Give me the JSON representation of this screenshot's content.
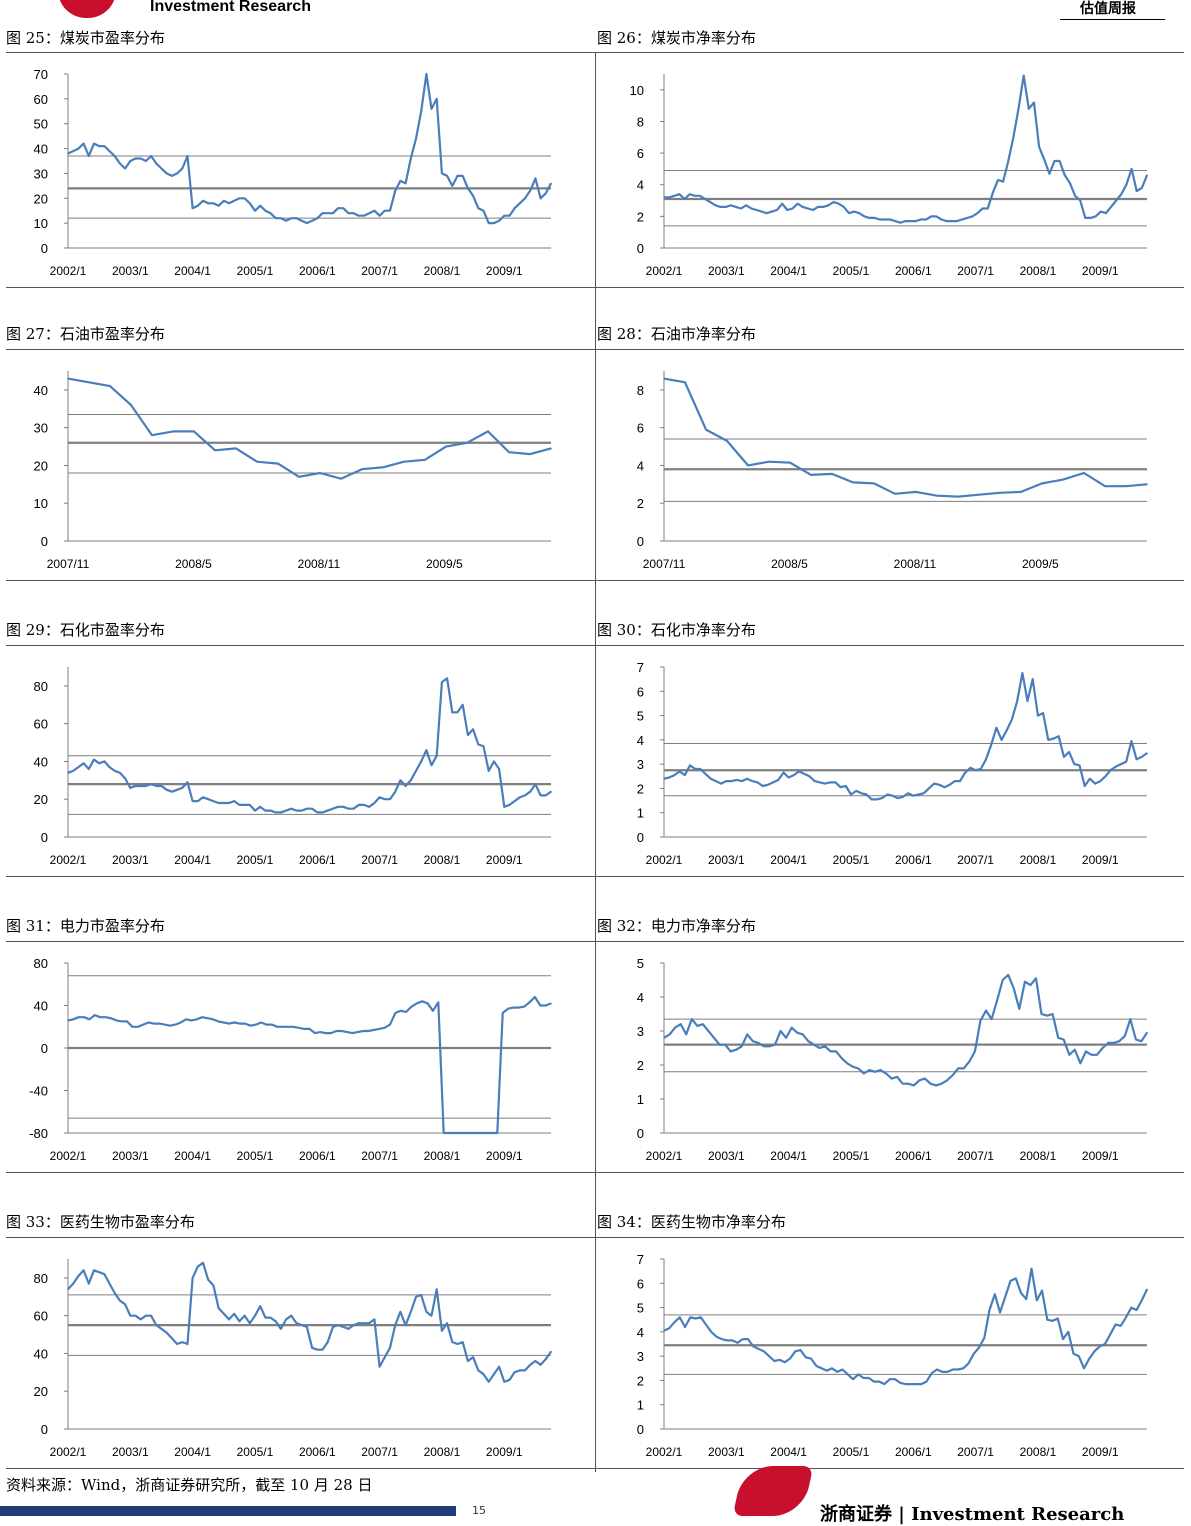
{
  "header": {
    "brand": "Investment Research",
    "right": "估值周报"
  },
  "source": "资料来源：Wind，浙商证券研究所，截至 10 月 28 日",
  "footer": {
    "page": "15",
    "brand_text": "浙商证券  |  Investment  Research"
  },
  "colors": {
    "line": "#4a7ebb",
    "ref": "#7f7f7f",
    "negative_tick": "#c00000",
    "footer_bar": "#1f3e7a",
    "logo": "#c8102e"
  },
  "chart_data": [
    {
      "id": "f25",
      "type": "line",
      "title": "图 25：煤炭市盈率分布",
      "ylim": [
        0,
        70
      ],
      "yticks": [
        0,
        10,
        20,
        30,
        40,
        50,
        60,
        70
      ],
      "xticks": [
        "2002/1",
        "2003/1",
        "2004/1",
        "2005/1",
        "2006/1",
        "2007/1",
        "2008/1",
        "2009/1"
      ],
      "ref": {
        "mean": 24,
        "upper": 37,
        "lower": 12
      },
      "values": [
        38,
        39,
        40,
        42,
        37,
        42,
        41,
        41,
        39,
        37,
        34,
        32,
        35,
        36,
        36,
        35,
        37,
        34,
        32,
        30,
        29,
        30,
        32,
        37,
        16,
        17,
        19,
        18,
        18,
        17,
        19,
        18,
        19,
        20,
        20,
        18,
        15,
        17,
        15,
        14,
        12,
        12,
        11,
        12,
        12,
        11,
        10,
        11,
        12,
        14,
        14,
        14,
        16,
        16,
        14,
        14,
        13,
        13,
        14,
        15,
        13,
        15,
        15,
        23,
        27,
        26,
        36,
        44,
        55,
        70,
        56,
        60,
        30,
        29,
        25,
        29,
        29,
        24,
        21,
        16,
        15,
        10,
        10,
        11,
        13,
        13,
        16,
        18,
        20,
        23,
        28,
        20,
        22,
        26
      ]
    },
    {
      "id": "f26",
      "type": "line",
      "title": "图 26：煤炭市净率分布",
      "ylim": [
        0,
        11
      ],
      "yticks": [
        0,
        2,
        4,
        6,
        8,
        10
      ],
      "xticks": [
        "2002/1",
        "2003/1",
        "2004/1",
        "2005/1",
        "2006/1",
        "2007/1",
        "2008/1",
        "2009/1"
      ],
      "ref": {
        "mean": 3.1,
        "upper": 4.9,
        "lower": 1.4
      },
      "values": [
        3.2,
        3.2,
        3.3,
        3.4,
        3.1,
        3.4,
        3.3,
        3.3,
        3.1,
        2.9,
        2.7,
        2.6,
        2.6,
        2.7,
        2.6,
        2.5,
        2.7,
        2.5,
        2.4,
        2.3,
        2.2,
        2.3,
        2.4,
        2.8,
        2.4,
        2.5,
        2.8,
        2.6,
        2.5,
        2.4,
        2.6,
        2.6,
        2.7,
        2.9,
        2.8,
        2.6,
        2.2,
        2.3,
        2.2,
        2.0,
        1.9,
        1.9,
        1.8,
        1.8,
        1.8,
        1.7,
        1.6,
        1.7,
        1.7,
        1.7,
        1.8,
        1.8,
        2.0,
        2.0,
        1.8,
        1.7,
        1.7,
        1.7,
        1.8,
        1.9,
        2.0,
        2.2,
        2.5,
        2.5,
        3.5,
        4.3,
        4.2,
        5.5,
        7.0,
        8.8,
        10.9,
        8.8,
        9.2,
        6.4,
        5.6,
        4.7,
        5.5,
        5.5,
        4.6,
        4.1,
        3.3,
        3.0,
        1.9,
        1.9,
        2.0,
        2.3,
        2.2,
        2.6,
        3.0,
        3.4,
        4.0,
        5.0,
        3.6,
        3.8,
        4.6
      ]
    },
    {
      "id": "f27",
      "type": "line",
      "title": "图 27：石油市盈率分布",
      "ylim": [
        0,
        45
      ],
      "yticks": [
        0,
        10,
        20,
        30,
        40
      ],
      "xticks": [
        "2007/11",
        "2008/5",
        "2008/11",
        "2009/5"
      ],
      "ref": {
        "mean": 26,
        "upper": 33.5,
        "lower": 18
      },
      "values": [
        43,
        42,
        41,
        36,
        28,
        29,
        29,
        24,
        24.5,
        21,
        20.5,
        17,
        18,
        16.5,
        19,
        19.5,
        21,
        21.5,
        25,
        26,
        29,
        23.5,
        23,
        24.5
      ]
    },
    {
      "id": "f28",
      "type": "line",
      "title": "图 28：石油市净率分布",
      "ylim": [
        0,
        9
      ],
      "yticks": [
        0,
        2,
        4,
        6,
        8
      ],
      "xticks": [
        "2007/11",
        "2008/5",
        "2008/11",
        "2009/5"
      ],
      "ref": {
        "mean": 3.8,
        "upper": 5.4,
        "lower": 2.1
      },
      "values": [
        8.6,
        8.4,
        5.9,
        5.3,
        4.0,
        4.2,
        4.15,
        3.5,
        3.55,
        3.1,
        3.05,
        2.5,
        2.6,
        2.4,
        2.35,
        2.45,
        2.55,
        2.6,
        3.05,
        3.25,
        3.6,
        2.9,
        2.9,
        3.0
      ]
    },
    {
      "id": "f29",
      "type": "line",
      "title": "图 29：石化市盈率分布",
      "ylim": [
        0,
        90
      ],
      "yticks": [
        0,
        20,
        40,
        60,
        80
      ],
      "xticks": [
        "2002/1",
        "2003/1",
        "2004/1",
        "2005/1",
        "2006/1",
        "2007/1",
        "2008/1",
        "2009/1"
      ],
      "ref": {
        "mean": 28,
        "upper": 43,
        "lower": 12
      },
      "values": [
        34,
        35,
        37,
        39,
        36,
        41,
        39,
        40,
        37,
        35,
        34,
        31,
        26,
        27,
        27,
        27,
        28,
        27,
        27,
        25,
        24,
        25,
        26,
        29,
        19,
        19,
        21,
        20,
        19,
        18,
        18,
        18,
        19,
        17,
        17,
        17,
        14,
        16,
        14,
        14,
        13,
        13,
        14,
        15,
        14,
        14,
        15,
        15,
        13,
        13,
        14,
        15,
        16,
        16,
        15,
        15,
        17,
        17,
        16,
        18,
        21,
        20,
        20,
        24,
        30,
        27,
        30,
        35,
        40,
        46,
        38,
        43,
        82,
        84,
        66,
        66,
        70,
        54,
        57,
        49,
        48,
        35,
        40,
        36,
        16,
        17,
        19,
        21,
        22,
        24,
        28,
        22,
        22,
        24
      ]
    },
    {
      "id": "f30",
      "type": "line",
      "title": "图 30：石化市净率分布",
      "ylim": [
        0,
        7
      ],
      "yticks": [
        0,
        1,
        2,
        3,
        4,
        5,
        6,
        7
      ],
      "xticks": [
        "2002/1",
        "2003/1",
        "2004/1",
        "2005/1",
        "2006/1",
        "2007/1",
        "2008/1",
        "2009/1"
      ],
      "ref": {
        "mean": 2.75,
        "upper": 3.85,
        "lower": 1.7
      },
      "values": [
        2.4,
        2.45,
        2.55,
        2.7,
        2.55,
        2.95,
        2.8,
        2.8,
        2.6,
        2.4,
        2.3,
        2.2,
        2.3,
        2.3,
        2.35,
        2.3,
        2.4,
        2.3,
        2.25,
        2.1,
        2.15,
        2.25,
        2.35,
        2.65,
        2.45,
        2.55,
        2.7,
        2.6,
        2.5,
        2.3,
        2.25,
        2.2,
        2.25,
        2.25,
        2.05,
        2.1,
        1.75,
        1.9,
        1.8,
        1.75,
        1.55,
        1.55,
        1.6,
        1.75,
        1.7,
        1.6,
        1.65,
        1.8,
        1.7,
        1.75,
        1.8,
        2.0,
        2.2,
        2.15,
        2.05,
        2.15,
        2.3,
        2.3,
        2.65,
        2.85,
        2.75,
        2.8,
        3.2,
        3.8,
        4.5,
        4.0,
        4.4,
        4.85,
        5.6,
        6.75,
        5.6,
        6.5,
        5.0,
        5.1,
        4.0,
        4.05,
        4.15,
        3.3,
        3.5,
        3.0,
        2.95,
        2.1,
        2.4,
        2.2,
        2.3,
        2.5,
        2.75,
        2.9,
        3.0,
        3.1,
        3.95,
        3.2,
        3.3,
        3.45
      ]
    },
    {
      "id": "f31",
      "type": "line",
      "title": "图 31：电力市盈率分布",
      "ylim": [
        -80,
        80
      ],
      "yticks": [
        -80,
        -40,
        0,
        40,
        80
      ],
      "xticks": [
        "2002/1",
        "2003/1",
        "2004/1",
        "2005/1",
        "2006/1",
        "2007/1",
        "2008/1",
        "2009/1"
      ],
      "ref": {
        "mean": 0,
        "upper": 68,
        "lower": -66
      },
      "values": [
        26,
        27,
        29,
        29,
        27,
        31,
        29,
        29,
        28,
        26,
        25,
        25,
        20,
        20,
        22,
        24,
        23,
        23,
        22,
        21,
        22,
        24,
        27,
        26,
        27,
        29,
        28,
        27,
        25,
        24,
        23,
        24,
        23,
        23,
        21,
        22,
        24,
        22,
        22,
        20,
        20,
        20,
        20,
        19,
        18,
        18,
        14,
        15,
        14,
        14,
        16,
        16,
        15,
        14,
        15,
        16,
        16,
        17,
        18,
        19,
        22,
        33,
        35,
        34,
        39,
        42,
        44,
        42,
        35,
        43,
        -80,
        -80,
        -80,
        -80,
        -80,
        -80,
        -80,
        -80,
        -80,
        -80,
        -80,
        33,
        37,
        38,
        38,
        39,
        43,
        48,
        40,
        40,
        42
      ]
    },
    {
      "id": "f32",
      "type": "line",
      "title": "图 32：电力市净率分布",
      "ylim": [
        0,
        5
      ],
      "yticks": [
        0,
        1,
        2,
        3,
        4,
        5
      ],
      "xticks": [
        "2002/1",
        "2003/1",
        "2004/1",
        "2005/1",
        "2006/1",
        "2007/1",
        "2008/1",
        "2009/1"
      ],
      "ref": {
        "mean": 2.6,
        "upper": 3.35,
        "lower": 1.8
      },
      "values": [
        2.8,
        2.9,
        3.1,
        3.2,
        2.9,
        3.35,
        3.15,
        3.2,
        3.0,
        2.8,
        2.6,
        2.6,
        2.4,
        2.45,
        2.55,
        2.9,
        2.7,
        2.65,
        2.55,
        2.55,
        2.6,
        3.0,
        2.8,
        3.1,
        2.95,
        2.9,
        2.7,
        2.6,
        2.5,
        2.55,
        2.4,
        2.4,
        2.2,
        2.05,
        1.95,
        1.9,
        1.75,
        1.85,
        1.8,
        1.85,
        1.75,
        1.6,
        1.65,
        1.45,
        1.45,
        1.4,
        1.55,
        1.6,
        1.45,
        1.4,
        1.45,
        1.55,
        1.7,
        1.9,
        1.9,
        2.1,
        2.4,
        3.3,
        3.6,
        3.35,
        3.9,
        4.5,
        4.65,
        4.25,
        3.65,
        4.45,
        4.35,
        4.55,
        3.5,
        3.45,
        3.5,
        2.8,
        2.75,
        2.3,
        2.45,
        2.05,
        2.4,
        2.3,
        2.3,
        2.5,
        2.65,
        2.65,
        2.7,
        2.85,
        3.35,
        2.75,
        2.7,
        2.95
      ]
    },
    {
      "id": "f33",
      "type": "line",
      "title": "图 33：医药生物市盈率分布",
      "ylim": [
        0,
        90
      ],
      "yticks": [
        0,
        20,
        40,
        60,
        80
      ],
      "xticks": [
        "2002/1",
        "2003/1",
        "2004/1",
        "2005/1",
        "2006/1",
        "2007/1",
        "2008/1",
        "2009/1"
      ],
      "ref": {
        "mean": 55,
        "upper": 71,
        "lower": 39
      },
      "values": [
        74,
        77,
        81,
        84,
        77,
        84,
        83,
        82,
        77,
        72,
        68,
        66,
        60,
        60,
        58,
        60,
        60,
        55,
        53,
        51,
        48,
        45,
        46,
        45,
        80,
        86,
        88,
        79,
        76,
        64,
        61,
        58,
        61,
        57,
        60,
        56,
        60,
        65,
        59,
        59,
        57,
        53,
        58,
        60,
        56,
        55,
        54,
        43,
        42,
        42,
        46,
        54,
        55,
        54,
        53,
        55,
        56,
        56,
        56,
        58,
        33,
        38,
        43,
        55,
        62,
        55,
        62,
        70,
        71,
        62,
        60,
        74,
        52,
        56,
        46,
        45,
        46,
        36,
        38,
        31,
        29,
        25,
        29,
        33,
        25,
        26,
        30,
        31,
        31,
        34,
        36,
        34,
        37,
        41
      ]
    },
    {
      "id": "f34",
      "type": "line",
      "title": "图 34：医药生物市净率分布",
      "ylim": [
        0,
        7
      ],
      "yticks": [
        0,
        1,
        2,
        3,
        4,
        5,
        6,
        7
      ],
      "xticks": [
        "2002/1",
        "2003/1",
        "2004/1",
        "2005/1",
        "2006/1",
        "2007/1",
        "2008/1",
        "2009/1"
      ],
      "ref": {
        "mean": 3.45,
        "upper": 4.7,
        "lower": 2.25
      },
      "values": [
        4.05,
        4.15,
        4.4,
        4.6,
        4.2,
        4.6,
        4.55,
        4.6,
        4.3,
        4.0,
        3.8,
        3.7,
        3.65,
        3.65,
        3.55,
        3.7,
        3.7,
        3.4,
        3.3,
        3.2,
        3.0,
        2.8,
        2.85,
        2.75,
        2.9,
        3.2,
        3.25,
        2.95,
        2.9,
        2.6,
        2.5,
        2.4,
        2.5,
        2.35,
        2.45,
        2.25,
        2.05,
        2.25,
        2.1,
        2.1,
        1.95,
        1.95,
        1.85,
        2.05,
        2.05,
        1.9,
        1.85,
        1.85,
        1.85,
        1.85,
        1.95,
        2.3,
        2.45,
        2.35,
        2.35,
        2.45,
        2.45,
        2.5,
        2.7,
        3.1,
        3.35,
        3.75,
        4.9,
        5.55,
        4.8,
        5.45,
        6.1,
        6.2,
        5.6,
        5.35,
        6.6,
        5.3,
        5.7,
        4.5,
        4.45,
        4.55,
        3.7,
        4.0,
        3.1,
        3.0,
        2.5,
        2.9,
        3.2,
        3.4,
        3.5,
        3.9,
        4.3,
        4.25,
        4.6,
        5.0,
        4.9,
        5.3,
        5.75
      ]
    }
  ]
}
